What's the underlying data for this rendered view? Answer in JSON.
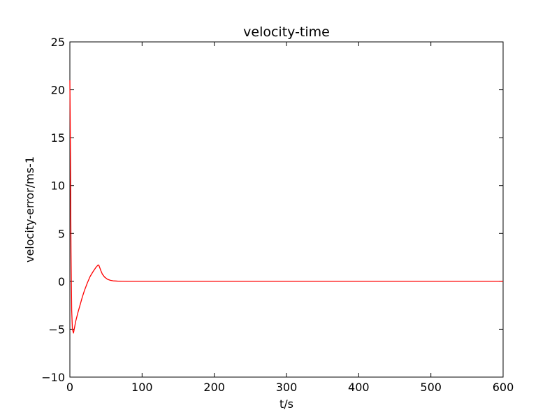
{
  "chart_data": {
    "type": "line",
    "title": "velocity-time",
    "xlabel": "t/s",
    "ylabel": "velocity-error/ms-1",
    "xlim": [
      0,
      600
    ],
    "ylim": [
      -10,
      25
    ],
    "grid": false,
    "xticks": [
      0,
      100,
      200,
      300,
      400,
      500,
      600
    ],
    "yticks": [
      -10,
      -5,
      0,
      5,
      10,
      15,
      20,
      25
    ],
    "xtick_labels": [
      "0",
      "100",
      "200",
      "300",
      "400",
      "500",
      "600"
    ],
    "ytick_labels": [
      "−10",
      "−5",
      "0",
      "5",
      "10",
      "15",
      "20",
      "25"
    ],
    "series": [
      {
        "color": "#ff0000",
        "x": [
          0,
          0.8,
          1.6,
          2.5,
          3.5,
          5,
          8,
          11,
          14,
          17,
          20,
          24,
          28,
          32,
          36,
          39,
          40,
          41,
          43,
          45,
          48,
          52,
          56,
          60,
          66,
          72,
          80,
          90,
          100,
          150,
          200,
          250,
          300,
          350,
          400,
          450,
          500,
          550,
          600
        ],
        "y": [
          21,
          13,
          3,
          -3,
          -5,
          -5.4,
          -4.2,
          -3.3,
          -2.5,
          -1.7,
          -1.0,
          -0.2,
          0.5,
          1.0,
          1.45,
          1.7,
          1.7,
          1.5,
          1.1,
          0.75,
          0.45,
          0.22,
          0.11,
          0.05,
          0.02,
          0.01,
          0,
          0,
          0,
          0,
          0,
          0,
          0,
          0,
          0,
          0,
          0,
          0,
          0
        ]
      }
    ]
  }
}
